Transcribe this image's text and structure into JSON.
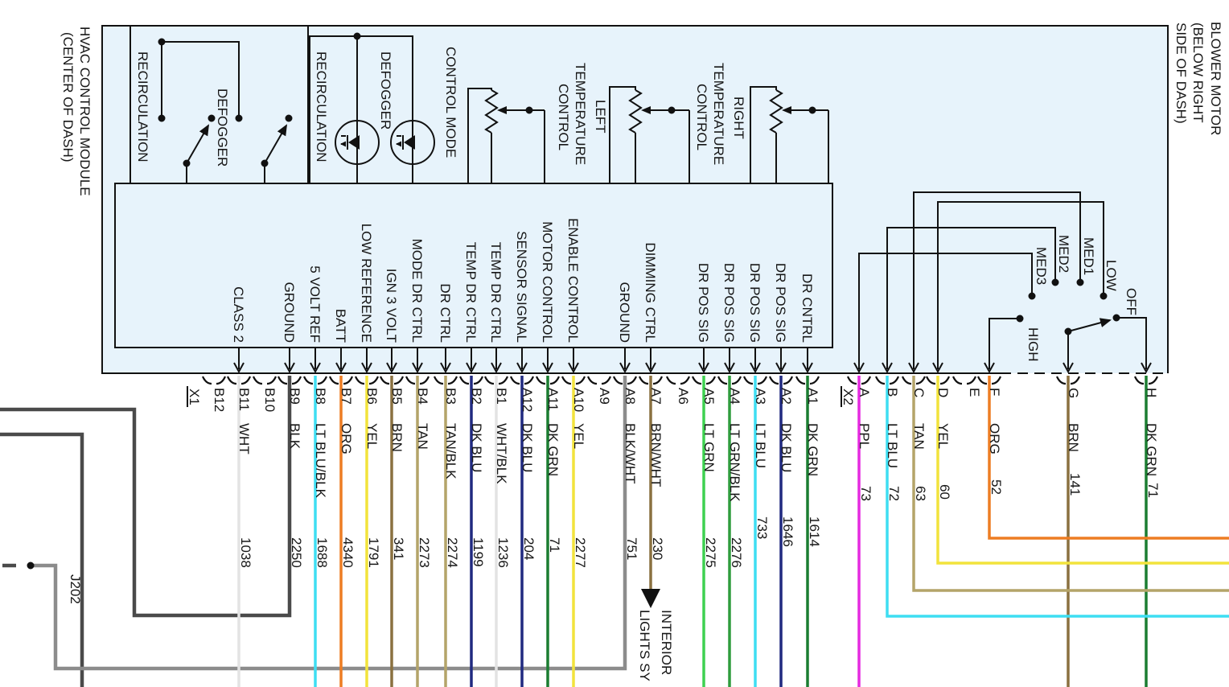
{
  "diagram": {
    "hvac_title_line1": "HVAC CONTROL MODULE",
    "hvac_title_line2": "(CENTER OF DASH)",
    "blower_title_line1": "BLOWER MOTOR",
    "blower_title_line2": "(BELOW RIGHT",
    "blower_title_line3": "SIDE OF DASH)"
  },
  "module": {
    "recirc_switch": "RECIRCULATION",
    "defogger_switch": "DEFOGGER",
    "recirc_led": "RECIRCULATION",
    "defogger_led": "DEFOGGER",
    "control_mode": "CONTROL MODE",
    "left_temp_line1": "LEFT",
    "left_temp_line2": "TEMPERATURE",
    "left_temp_line3": "CONTROL",
    "right_temp_line1": "RIGHT",
    "right_temp_line2": "TEMPERATURE",
    "right_temp_line3": "CONTROL"
  },
  "blower_switch": {
    "med3": "MED3",
    "med2": "MED2",
    "med1": "MED1",
    "low": "LOW",
    "off": "OFF",
    "high": "HIGH"
  },
  "connector_x1": {
    "label": "X1",
    "pins": [
      {
        "pin": "B12"
      },
      {
        "pin": "B11",
        "function": "CLASS 2",
        "color": "WHT",
        "circuit": "1038"
      },
      {
        "pin": "B10"
      },
      {
        "pin": "B9",
        "function": "GROUND",
        "color": "BLK",
        "circuit": "2250"
      },
      {
        "pin": "B8",
        "function": "5 VOLT REF",
        "color": "LT BLU/BLK",
        "circuit": "1688"
      },
      {
        "pin": "B7",
        "function": "BATT",
        "color": "ORG",
        "circuit": "4340"
      },
      {
        "pin": "B6",
        "function": "LOW REFERENCE",
        "color": "YEL",
        "circuit": "1791"
      },
      {
        "pin": "B5",
        "function": "IGN 3 VOLT",
        "color": "BRN",
        "circuit": "341"
      },
      {
        "pin": "B4",
        "function": "MODE DR CTRL",
        "color": "TAN",
        "circuit": "2273"
      },
      {
        "pin": "B3",
        "function": "DR CTRL",
        "color": "TAN/BLK",
        "circuit": "2274"
      },
      {
        "pin": "B2",
        "function": "TEMP DR CTRL",
        "color": "DK BLU",
        "circuit": "1199"
      },
      {
        "pin": "B1",
        "function": "TEMP DR CTRL",
        "color": "WHT/BLK",
        "circuit": "1236"
      },
      {
        "pin": "A12",
        "function": "SENSOR SIGNAL",
        "color": "DK BLU",
        "circuit": "204"
      },
      {
        "pin": "A11",
        "function": "MOTOR CONTROL",
        "color": "DK GRN",
        "circuit": "71"
      },
      {
        "pin": "A10",
        "function": "ENABLE CONTROL",
        "color": "YEL",
        "circuit": "2277"
      },
      {
        "pin": "A9"
      },
      {
        "pin": "A8",
        "function": "GROUND",
        "color": "BLK/WHT",
        "circuit": "751"
      },
      {
        "pin": "A7",
        "function": "DIMMING CTRL",
        "color": "BRN/WHT",
        "circuit": "230"
      },
      {
        "pin": "A6"
      },
      {
        "pin": "A5",
        "function": "DR POS SIG",
        "color": "LT GRN",
        "circuit": "2275"
      },
      {
        "pin": "A4",
        "function": "DR POS SIG",
        "color": "LT GRN/BLK",
        "circuit": "2276"
      },
      {
        "pin": "A3",
        "function": "DR POS SIG",
        "color": "LT BLU",
        "circuit": "733"
      },
      {
        "pin": "A2",
        "function": "DR POS SIG",
        "color": "DK BLU",
        "circuit": "1646"
      },
      {
        "pin": "A1",
        "function": "DR CNTRL",
        "color": "DK GRN",
        "circuit": "1614"
      }
    ]
  },
  "connector_x2": {
    "label": "X2",
    "pins": [
      {
        "pin": "A",
        "color": "PPL",
        "circuit": "73"
      },
      {
        "pin": "B",
        "color": "LT BLU",
        "circuit": "72"
      },
      {
        "pin": "C",
        "color": "TAN",
        "circuit": "63"
      },
      {
        "pin": "D",
        "color": "YEL",
        "circuit": "60"
      },
      {
        "pin": "E"
      },
      {
        "pin": "F",
        "color": "ORG",
        "circuit": "52"
      },
      {
        "pin": "G",
        "color": "BRN",
        "circuit": "141"
      },
      {
        "pin": "H",
        "color": "DK GRN",
        "circuit": "71"
      }
    ]
  },
  "junction_label": "J202",
  "interior_lights_line1": "INTERIOR",
  "interior_lights_line2": "LIGHTS SY",
  "wire_colors": {
    "WHT": "#e3e3e3",
    "BLK": "#434343",
    "LT_BLU": "#3edef2",
    "ORG": "#ed7d23",
    "YEL": "#f2e33c",
    "BRN": "#8a7140",
    "TAN": "#b4a469",
    "DK_BLU": "#202a80",
    "DK_GRN": "#1b7d31",
    "LT_GRN": "#3ed150",
    "LT_GRN_BLK": "#2f9c3d",
    "PPL": "#e52ae0",
    "BLK_WHT": "#8c8c8c",
    "GRAY_ROUTE": "#4a4a4a",
    "MODULE_FILL": "#e7f3fb"
  }
}
